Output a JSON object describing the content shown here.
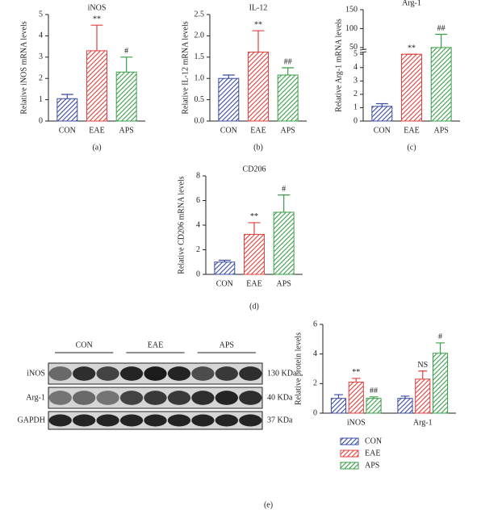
{
  "chart_data": [
    {
      "type": "bar",
      "title": "iNOS",
      "y_label": "Relative iNOS mRNA levels",
      "caption": "(a)",
      "categories": [
        "CON",
        "EAE",
        "APS"
      ],
      "values": [
        1.05,
        3.3,
        2.3
      ],
      "errors": [
        0.2,
        1.2,
        0.7
      ],
      "colors": [
        "#3b4ba3",
        "#e0403c",
        "#3a9e48"
      ],
      "annotations": [
        null,
        "**",
        "#"
      ],
      "ylim": [
        0,
        5
      ],
      "yticks": [
        0,
        1,
        2,
        3,
        4,
        5
      ]
    },
    {
      "type": "bar",
      "title": "IL-12",
      "y_label": "Relative IL-12 mRNA levels",
      "caption": "(b)",
      "categories": [
        "CON",
        "EAE",
        "APS"
      ],
      "values": [
        1.0,
        1.62,
        1.08
      ],
      "errors": [
        0.08,
        0.5,
        0.17
      ],
      "colors": [
        "#3b4ba3",
        "#e0403c",
        "#3a9e48"
      ],
      "annotations": [
        null,
        "**",
        "##"
      ],
      "ylim": [
        0,
        2.5
      ],
      "yticks": [
        {
          "value": 0,
          "label": "0.0"
        },
        {
          "value": 0.5,
          "label": "0.5"
        },
        {
          "value": 1,
          "label": "1.0"
        },
        {
          "value": 1.5,
          "label": "1.5"
        },
        {
          "value": 2,
          "label": "2.0"
        },
        {
          "value": 2.5,
          "label": "2.5"
        }
      ]
    },
    {
      "type": "bar",
      "title": "Arg-1",
      "y_label": "Relative Arg-1 mRNA levels",
      "caption": "(c)",
      "categories": [
        "CON",
        "EAE",
        "APS"
      ],
      "values": [
        1.1,
        5,
        50
      ],
      "errors": [
        0.2,
        0.1,
        35
      ],
      "colors": [
        "#3b4ba3",
        "#e0403c",
        "#3a9e48"
      ],
      "annotations": [
        null,
        "**",
        "##"
      ],
      "ylim": [
        0,
        150
      ],
      "ybreak": [
        5,
        50
      ],
      "yticks": [
        0,
        1,
        2,
        3,
        4,
        5,
        50,
        100,
        150
      ]
    },
    {
      "type": "bar",
      "title": "CD206",
      "y_label": "Relative CD206 mRNA levels",
      "caption": "(d)",
      "categories": [
        "CON",
        "EAE",
        "APS"
      ],
      "values": [
        1.0,
        3.25,
        5.05
      ],
      "errors": [
        0.15,
        0.95,
        1.4
      ],
      "colors": [
        "#3b4ba3",
        "#e0403c",
        "#3a9e48"
      ],
      "annotations": [
        null,
        "**",
        "#"
      ],
      "ylim": [
        0,
        8
      ],
      "yticks": [
        0,
        2,
        4,
        6,
        8
      ]
    },
    {
      "type": "grouped_bar",
      "y_label": "Relative protein levels",
      "caption": "(e)",
      "categories": [
        "iNOS",
        "Arg-1"
      ],
      "series": [
        {
          "name": "CON",
          "color": "#3b4ba3",
          "values": [
            1.0,
            1.0
          ],
          "errors": [
            0.25,
            0.15
          ],
          "annotations": [
            null,
            null
          ]
        },
        {
          "name": "EAE",
          "color": "#e0403c",
          "values": [
            2.1,
            2.3
          ],
          "errors": [
            0.25,
            0.55
          ],
          "annotations": [
            "**",
            "NS"
          ]
        },
        {
          "name": "APS",
          "color": "#3a9e48",
          "values": [
            1.0,
            4.05
          ],
          "errors": [
            0.1,
            0.7
          ],
          "annotations": [
            "##",
            "#"
          ]
        }
      ],
      "ylim": [
        0,
        6
      ],
      "yticks": [
        0,
        2,
        4,
        6
      ]
    }
  ],
  "blot": {
    "groups": [
      "CON",
      "EAE",
      "APS"
    ],
    "rows": [
      {
        "label": "iNOS",
        "size": "130 KDa"
      },
      {
        "label": "Arg-1",
        "size": "40 KDa"
      },
      {
        "label": "GAPDH",
        "size": "37 KDa"
      }
    ]
  }
}
